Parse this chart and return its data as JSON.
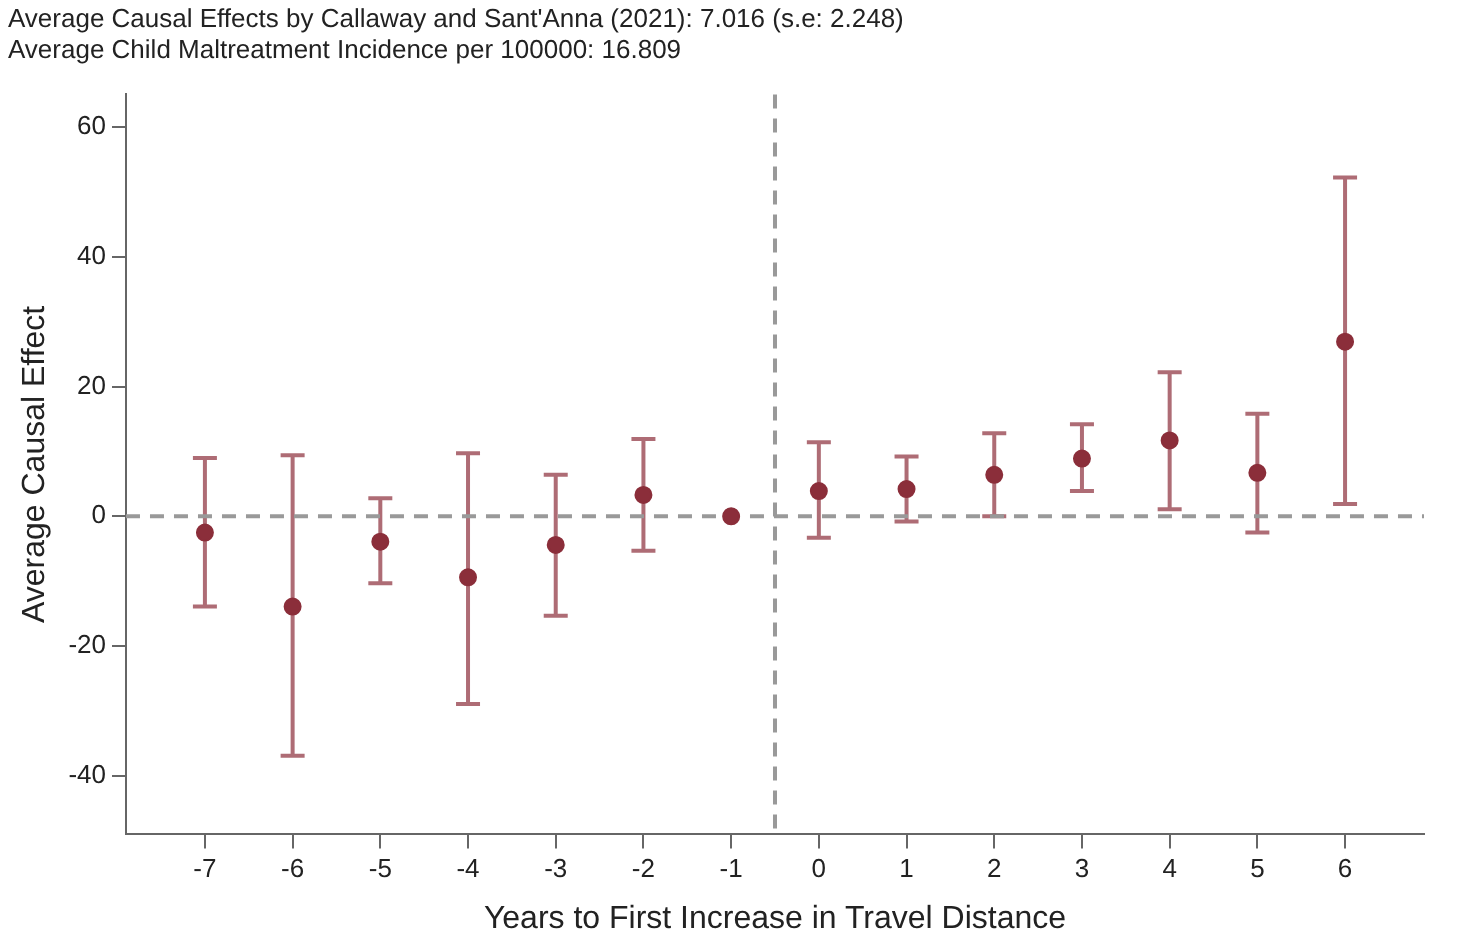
{
  "chart_data": {
    "type": "scatter",
    "title": "Average Causal Effects by Callaway and Sant'Anna (2021): 7.016 (s.e: 2.248)",
    "subtitle": "Average Child Maltreatment Incidence per 100000: 16.809",
    "xlabel": "Years to First Increase in Travel Distance",
    "ylabel": "Average Causal Effect",
    "x": [
      -7,
      -6,
      -5,
      -4,
      -3,
      -2,
      -1,
      0,
      1,
      2,
      3,
      4,
      5,
      6
    ],
    "series": [
      {
        "color": "#8b2e3a",
        "values": [
          -2.5,
          -13.9,
          -3.9,
          -9.4,
          -4.4,
          3.3,
          0,
          3.9,
          4.2,
          6.4,
          8.9,
          11.7,
          6.7,
          26.9
        ],
        "errors": [
          [
            -13.9,
            9
          ],
          [
            -36.9,
            9.4
          ],
          [
            -10.3,
            2.8
          ],
          [
            -28.9,
            9.7
          ],
          [
            -15.3,
            6.4
          ],
          [
            -5.3,
            11.9
          ],
          null,
          [
            -3.3,
            11.4
          ],
          [
            -0.8,
            9.2
          ],
          [
            0,
            12.8
          ],
          [
            3.9,
            14.2
          ],
          [
            1.1,
            22.2
          ],
          [
            -2.5,
            15.8
          ],
          [
            1.9,
            52.2
          ]
        ]
      }
    ],
    "xlim": [
      -7.9,
      6.9
    ],
    "xticks": [
      -7,
      -6,
      -5,
      -4,
      -3,
      -2,
      -1,
      0,
      1,
      2,
      3,
      4,
      5,
      6
    ],
    "ylim": [
      -49,
      65
    ],
    "yticks": [
      -40,
      -20,
      0,
      20,
      40,
      60
    ],
    "ref_lines": [
      {
        "axis": "y",
        "value": 0,
        "color": "#999999",
        "line_style": "dashed"
      },
      {
        "axis": "x",
        "value": -0.5,
        "color": "#999999",
        "line_style": "dashed"
      }
    ],
    "grid": false,
    "legend": false,
    "marker": "circle"
  }
}
